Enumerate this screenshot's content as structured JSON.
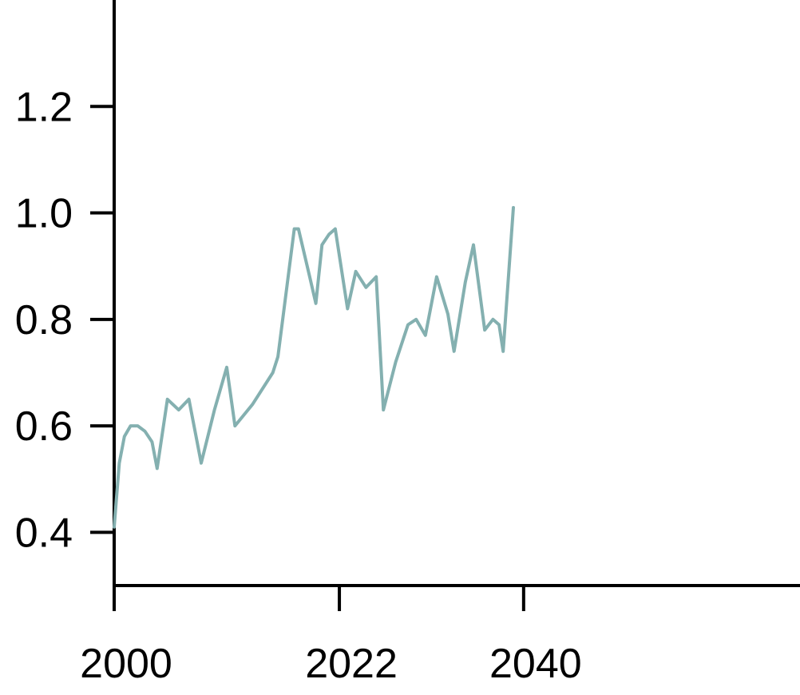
{
  "chart_data": {
    "type": "line",
    "title": "",
    "xlabel": "",
    "ylabel": "",
    "xlim": [
      2000,
      2067
    ],
    "ylim": [
      0.3,
      1.4
    ],
    "x_ticks": [
      {
        "value": 2000,
        "label": "2000"
      },
      {
        "value": 2022,
        "label": "2022"
      },
      {
        "value": 2040,
        "label": "2040"
      }
    ],
    "y_ticks": [
      {
        "value": 0.4,
        "label": "0.4"
      },
      {
        "value": 0.6,
        "label": "0.6"
      },
      {
        "value": 0.8,
        "label": "0.8"
      },
      {
        "value": 1.0,
        "label": "1.0"
      },
      {
        "value": 1.2,
        "label": "1.2"
      }
    ],
    "grid": false,
    "legend": "none",
    "series": [
      {
        "color": "#84b0b0",
        "points": [
          [
            2000.0,
            0.41
          ],
          [
            2000.5,
            0.53
          ],
          [
            2001.0,
            0.58
          ],
          [
            2001.6,
            0.6
          ],
          [
            2002.3,
            0.6
          ],
          [
            2003.0,
            0.59
          ],
          [
            2003.7,
            0.57
          ],
          [
            2004.2,
            0.52
          ],
          [
            2005.2,
            0.65
          ],
          [
            2006.3,
            0.63
          ],
          [
            2007.3,
            0.65
          ],
          [
            2008.5,
            0.53
          ],
          [
            2009.8,
            0.63
          ],
          [
            2011.0,
            0.71
          ],
          [
            2011.8,
            0.6
          ],
          [
            2013.5,
            0.64
          ],
          [
            2015.5,
            0.7
          ],
          [
            2016.0,
            0.73
          ],
          [
            2017.6,
            0.97
          ],
          [
            2018.0,
            0.97
          ],
          [
            2019.1,
            0.88
          ],
          [
            2019.7,
            0.83
          ],
          [
            2020.3,
            0.94
          ],
          [
            2021.0,
            0.96
          ],
          [
            2021.6,
            0.97
          ],
          [
            2022.8,
            0.82
          ],
          [
            2023.6,
            0.89
          ],
          [
            2024.6,
            0.86
          ],
          [
            2025.6,
            0.88
          ],
          [
            2026.3,
            0.63
          ],
          [
            2027.5,
            0.72
          ],
          [
            2028.7,
            0.79
          ],
          [
            2029.5,
            0.8
          ],
          [
            2030.4,
            0.77
          ],
          [
            2031.5,
            0.88
          ],
          [
            2032.6,
            0.81
          ],
          [
            2033.2,
            0.74
          ],
          [
            2034.3,
            0.87
          ],
          [
            2035.1,
            0.94
          ],
          [
            2036.2,
            0.78
          ],
          [
            2037.0,
            0.8
          ],
          [
            2037.6,
            0.79
          ],
          [
            2038.0,
            0.74
          ],
          [
            2039.0,
            1.01
          ]
        ]
      }
    ]
  }
}
